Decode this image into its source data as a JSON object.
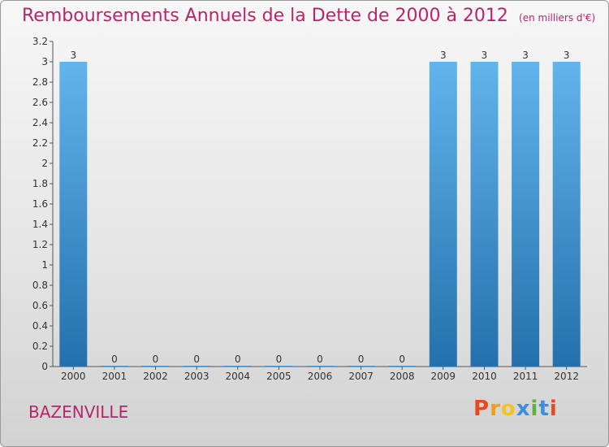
{
  "header": {
    "title": "Remboursements Annuels de la Dette de 2000 à 2012",
    "unit": "(en milliers d'€)"
  },
  "footer": {
    "commune": "BAZENVILLE",
    "logo": "Proxiti"
  },
  "colors": {
    "title": "#b5266a",
    "bar_top": "#62b4ec",
    "bar_bottom": "#2470ac",
    "logo_letters": [
      "#e84a1f",
      "#f39a1f",
      "#f3c31f",
      "#3c8fd8",
      "#5fb13a",
      "#3c8fd8",
      "#e84a1f"
    ]
  },
  "chart_data": {
    "type": "bar",
    "title": "Remboursements Annuels de la Dette de 2000 à 2012",
    "categories": [
      "2000",
      "2001",
      "2002",
      "2003",
      "2004",
      "2005",
      "2006",
      "2007",
      "2008",
      "2009",
      "2010",
      "2011",
      "2012"
    ],
    "values": [
      3,
      0,
      0,
      0,
      0,
      0,
      0,
      0,
      0,
      3,
      3,
      3,
      3
    ],
    "data_labels": [
      "3",
      "0",
      "0",
      "0",
      "0",
      "0",
      "0",
      "0",
      "0",
      "3",
      "3",
      "3",
      "3"
    ],
    "ylim": [
      0,
      3.2
    ],
    "yticks": [
      "0",
      "0.2",
      "0.4",
      "0.6",
      "0.8",
      "1",
      "1.2",
      "1.4",
      "1.6",
      "1.8",
      "2",
      "2.2",
      "2.4",
      "2.6",
      "2.8",
      "3",
      "3.2"
    ],
    "xlabel": "",
    "ylabel": "",
    "grid": false
  }
}
